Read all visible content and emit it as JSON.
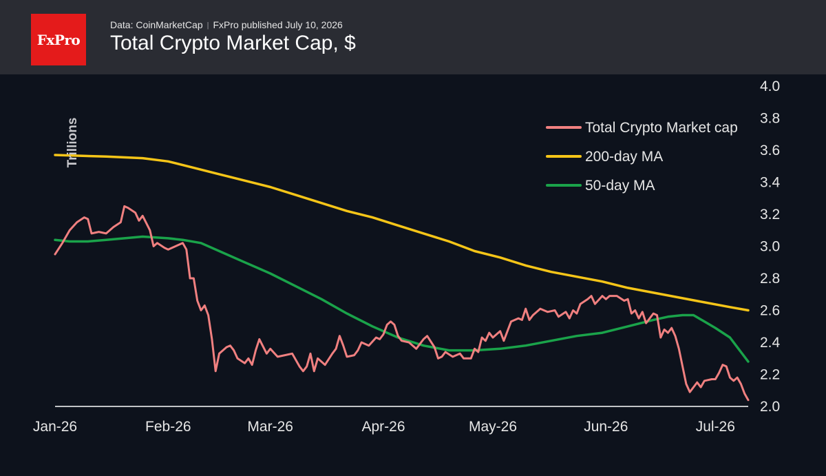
{
  "header": {
    "logo_text": "FxPro",
    "source": "Data: CoinMarketCap",
    "published": "FxPro published July 10, 2026",
    "title": "Total Crypto Market Cap, $"
  },
  "colors": {
    "background": "#0d121c",
    "header_bg": "#2a2c33",
    "logo_bg": "#e41b1b",
    "total": "#f08080",
    "ma200": "#f5c518",
    "ma50": "#1aa34a",
    "text": "#e6e6e6",
    "axis_line": "#ffffff"
  },
  "chart_data": {
    "type": "line",
    "title": "Total Crypto Market Cap, $",
    "ylabel": "Trillions",
    "xlabel": "",
    "ylim": [
      2.0,
      4.0
    ],
    "yticks": [
      "2.0",
      "2.2",
      "2.4",
      "2.6",
      "2.8",
      "3.0",
      "3.2",
      "3.4",
      "3.6",
      "3.8",
      "4.0"
    ],
    "xlim": [
      "2026-01-01",
      "2026-07-10"
    ],
    "xticks": [
      {
        "label": "Jan-26",
        "date": "2026-01-01"
      },
      {
        "label": "Feb-26",
        "date": "2026-02-01"
      },
      {
        "label": "Mar-26",
        "date": "2026-03-01"
      },
      {
        "label": "Apr-26",
        "date": "2026-04-01"
      },
      {
        "label": "May-26",
        "date": "2026-05-01"
      },
      {
        "label": "Jun-26",
        "date": "2026-06-01"
      },
      {
        "label": "Jul-26",
        "date": "2026-07-01"
      }
    ],
    "grid": false,
    "legend_position": "top-right",
    "series": [
      {
        "name": "Total Crypto Market cap",
        "color": "#f08080",
        "points": [
          [
            "2026-01-01",
            2.95
          ],
          [
            "2026-01-03",
            3.02
          ],
          [
            "2026-01-05",
            3.1
          ],
          [
            "2026-01-07",
            3.15
          ],
          [
            "2026-01-09",
            3.18
          ],
          [
            "2026-01-10",
            3.17
          ],
          [
            "2026-01-11",
            3.08
          ],
          [
            "2026-01-13",
            3.09
          ],
          [
            "2026-01-15",
            3.08
          ],
          [
            "2026-01-17",
            3.12
          ],
          [
            "2026-01-19",
            3.15
          ],
          [
            "2026-01-20",
            3.25
          ],
          [
            "2026-01-21",
            3.24
          ],
          [
            "2026-01-23",
            3.21
          ],
          [
            "2026-01-24",
            3.16
          ],
          [
            "2026-01-25",
            3.19
          ],
          [
            "2026-01-27",
            3.1
          ],
          [
            "2026-01-28",
            3.0
          ],
          [
            "2026-01-29",
            3.02
          ],
          [
            "2026-01-31",
            2.99
          ],
          [
            "2026-02-01",
            2.98
          ],
          [
            "2026-02-03",
            3.0
          ],
          [
            "2026-02-05",
            3.02
          ],
          [
            "2026-02-06",
            2.98
          ],
          [
            "2026-02-07",
            2.8
          ],
          [
            "2026-02-08",
            2.8
          ],
          [
            "2026-02-09",
            2.66
          ],
          [
            "2026-02-10",
            2.6
          ],
          [
            "2026-02-11",
            2.63
          ],
          [
            "2026-02-12",
            2.57
          ],
          [
            "2026-02-13",
            2.42
          ],
          [
            "2026-02-14",
            2.22
          ],
          [
            "2026-02-15",
            2.33
          ],
          [
            "2026-02-17",
            2.37
          ],
          [
            "2026-02-18",
            2.38
          ],
          [
            "2026-02-19",
            2.35
          ],
          [
            "2026-02-20",
            2.3
          ],
          [
            "2026-02-22",
            2.27
          ],
          [
            "2026-02-23",
            2.3
          ],
          [
            "2026-02-24",
            2.26
          ],
          [
            "2026-02-25",
            2.35
          ],
          [
            "2026-02-26",
            2.42
          ],
          [
            "2026-02-28",
            2.33
          ],
          [
            "2026-03-01",
            2.36
          ],
          [
            "2026-03-03",
            2.31
          ],
          [
            "2026-03-05",
            2.32
          ],
          [
            "2026-03-07",
            2.33
          ],
          [
            "2026-03-09",
            2.25
          ],
          [
            "2026-03-10",
            2.22
          ],
          [
            "2026-03-11",
            2.25
          ],
          [
            "2026-03-12",
            2.33
          ],
          [
            "2026-03-13",
            2.22
          ],
          [
            "2026-03-14",
            2.3
          ],
          [
            "2026-03-16",
            2.26
          ],
          [
            "2026-03-18",
            2.33
          ],
          [
            "2026-03-19",
            2.36
          ],
          [
            "2026-03-20",
            2.44
          ],
          [
            "2026-03-21",
            2.38
          ],
          [
            "2026-03-22",
            2.31
          ],
          [
            "2026-03-24",
            2.32
          ],
          [
            "2026-03-25",
            2.35
          ],
          [
            "2026-03-26",
            2.4
          ],
          [
            "2026-03-28",
            2.38
          ],
          [
            "2026-03-30",
            2.43
          ],
          [
            "2026-03-31",
            2.42
          ],
          [
            "2026-04-01",
            2.45
          ],
          [
            "2026-04-02",
            2.51
          ],
          [
            "2026-04-03",
            2.53
          ],
          [
            "2026-04-04",
            2.51
          ],
          [
            "2026-04-05",
            2.44
          ],
          [
            "2026-04-06",
            2.41
          ],
          [
            "2026-04-08",
            2.4
          ],
          [
            "2026-04-10",
            2.36
          ],
          [
            "2026-04-12",
            2.42
          ],
          [
            "2026-04-13",
            2.44
          ],
          [
            "2026-04-15",
            2.37
          ],
          [
            "2026-04-16",
            2.3
          ],
          [
            "2026-04-17",
            2.31
          ],
          [
            "2026-04-18",
            2.34
          ],
          [
            "2026-04-20",
            2.31
          ],
          [
            "2026-04-22",
            2.33
          ],
          [
            "2026-04-23",
            2.3
          ],
          [
            "2026-04-24",
            2.3
          ],
          [
            "2026-04-25",
            2.3
          ],
          [
            "2026-04-26",
            2.36
          ],
          [
            "2026-04-27",
            2.34
          ],
          [
            "2026-04-28",
            2.43
          ],
          [
            "2026-04-29",
            2.41
          ],
          [
            "2026-04-30",
            2.46
          ],
          [
            "2026-05-01",
            2.43
          ],
          [
            "2026-05-03",
            2.47
          ],
          [
            "2026-05-04",
            2.41
          ],
          [
            "2026-05-06",
            2.53
          ],
          [
            "2026-05-08",
            2.55
          ],
          [
            "2026-05-09",
            2.54
          ],
          [
            "2026-05-10",
            2.61
          ],
          [
            "2026-05-11",
            2.54
          ],
          [
            "2026-05-12",
            2.57
          ],
          [
            "2026-05-14",
            2.61
          ],
          [
            "2026-05-16",
            2.59
          ],
          [
            "2026-05-18",
            2.6
          ],
          [
            "2026-05-19",
            2.56
          ],
          [
            "2026-05-21",
            2.59
          ],
          [
            "2026-05-22",
            2.55
          ],
          [
            "2026-05-23",
            2.6
          ],
          [
            "2026-05-24",
            2.58
          ],
          [
            "2026-05-25",
            2.64
          ],
          [
            "2026-05-27",
            2.67
          ],
          [
            "2026-05-28",
            2.69
          ],
          [
            "2026-05-29",
            2.64
          ],
          [
            "2026-05-31",
            2.69
          ],
          [
            "2026-06-01",
            2.67
          ],
          [
            "2026-06-02",
            2.69
          ],
          [
            "2026-06-04",
            2.69
          ],
          [
            "2026-06-06",
            2.66
          ],
          [
            "2026-06-07",
            2.67
          ],
          [
            "2026-06-08",
            2.58
          ],
          [
            "2026-06-09",
            2.6
          ],
          [
            "2026-06-10",
            2.55
          ],
          [
            "2026-06-11",
            2.59
          ],
          [
            "2026-06-12",
            2.52
          ],
          [
            "2026-06-13",
            2.55
          ],
          [
            "2026-06-14",
            2.58
          ],
          [
            "2026-06-15",
            2.57
          ],
          [
            "2026-06-16",
            2.43
          ],
          [
            "2026-06-17",
            2.48
          ],
          [
            "2026-06-18",
            2.46
          ],
          [
            "2026-06-19",
            2.49
          ],
          [
            "2026-06-20",
            2.44
          ],
          [
            "2026-06-21",
            2.36
          ],
          [
            "2026-06-22",
            2.25
          ],
          [
            "2026-06-23",
            2.14
          ],
          [
            "2026-06-24",
            2.09
          ],
          [
            "2026-06-25",
            2.12
          ],
          [
            "2026-06-26",
            2.15
          ],
          [
            "2026-06-27",
            2.12
          ],
          [
            "2026-06-28",
            2.16
          ],
          [
            "2026-06-30",
            2.17
          ],
          [
            "2026-07-01",
            2.17
          ],
          [
            "2026-07-02",
            2.21
          ],
          [
            "2026-07-03",
            2.26
          ],
          [
            "2026-07-04",
            2.25
          ],
          [
            "2026-07-05",
            2.18
          ],
          [
            "2026-07-06",
            2.16
          ],
          [
            "2026-07-07",
            2.18
          ],
          [
            "2026-07-08",
            2.14
          ],
          [
            "2026-07-09",
            2.08
          ],
          [
            "2026-07-10",
            2.04
          ]
        ]
      },
      {
        "name": "200-day MA",
        "color": "#f5c518",
        "points": [
          [
            "2026-01-01",
            3.57
          ],
          [
            "2026-01-15",
            3.56
          ],
          [
            "2026-01-25",
            3.55
          ],
          [
            "2026-02-01",
            3.53
          ],
          [
            "2026-02-08",
            3.49
          ],
          [
            "2026-02-15",
            3.45
          ],
          [
            "2026-02-22",
            3.41
          ],
          [
            "2026-03-01",
            3.37
          ],
          [
            "2026-03-08",
            3.32
          ],
          [
            "2026-03-15",
            3.27
          ],
          [
            "2026-03-22",
            3.22
          ],
          [
            "2026-03-29",
            3.18
          ],
          [
            "2026-04-05",
            3.13
          ],
          [
            "2026-04-12",
            3.08
          ],
          [
            "2026-04-19",
            3.03
          ],
          [
            "2026-04-26",
            2.97
          ],
          [
            "2026-05-03",
            2.93
          ],
          [
            "2026-05-10",
            2.88
          ],
          [
            "2026-05-17",
            2.84
          ],
          [
            "2026-05-24",
            2.81
          ],
          [
            "2026-05-31",
            2.78
          ],
          [
            "2026-06-07",
            2.74
          ],
          [
            "2026-06-14",
            2.71
          ],
          [
            "2026-06-21",
            2.68
          ],
          [
            "2026-06-28",
            2.65
          ],
          [
            "2026-07-05",
            2.62
          ],
          [
            "2026-07-10",
            2.6
          ]
        ]
      },
      {
        "name": "50-day MA",
        "color": "#1aa34a",
        "points": [
          [
            "2026-01-01",
            3.04
          ],
          [
            "2026-01-05",
            3.03
          ],
          [
            "2026-01-10",
            3.03
          ],
          [
            "2026-01-15",
            3.04
          ],
          [
            "2026-01-20",
            3.05
          ],
          [
            "2026-01-25",
            3.06
          ],
          [
            "2026-02-01",
            3.05
          ],
          [
            "2026-02-05",
            3.04
          ],
          [
            "2026-02-10",
            3.02
          ],
          [
            "2026-02-15",
            2.97
          ],
          [
            "2026-02-22",
            2.9
          ],
          [
            "2026-03-01",
            2.83
          ],
          [
            "2026-03-08",
            2.75
          ],
          [
            "2026-03-15",
            2.67
          ],
          [
            "2026-03-22",
            2.58
          ],
          [
            "2026-03-29",
            2.5
          ],
          [
            "2026-04-05",
            2.43
          ],
          [
            "2026-04-12",
            2.38
          ],
          [
            "2026-04-19",
            2.35
          ],
          [
            "2026-04-26",
            2.35
          ],
          [
            "2026-05-03",
            2.36
          ],
          [
            "2026-05-10",
            2.38
          ],
          [
            "2026-05-17",
            2.41
          ],
          [
            "2026-05-24",
            2.44
          ],
          [
            "2026-05-31",
            2.46
          ],
          [
            "2026-06-07",
            2.5
          ],
          [
            "2026-06-14",
            2.54
          ],
          [
            "2026-06-18",
            2.56
          ],
          [
            "2026-06-22",
            2.57
          ],
          [
            "2026-06-25",
            2.57
          ],
          [
            "2026-06-28",
            2.53
          ],
          [
            "2026-07-01",
            2.49
          ],
          [
            "2026-07-05",
            2.43
          ],
          [
            "2026-07-08",
            2.34
          ],
          [
            "2026-07-10",
            2.28
          ]
        ]
      }
    ]
  }
}
